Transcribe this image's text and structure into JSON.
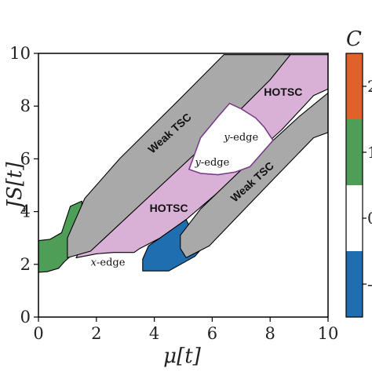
{
  "chart_data": {
    "type": "phase-diagram",
    "xlabel": "μ[t]",
    "ylabel": "JS[t]",
    "xlim": [
      0,
      10
    ],
    "ylim": [
      0,
      10
    ],
    "xticks": [
      "0",
      "2",
      "4",
      "6",
      "8",
      "10"
    ],
    "yticks": [
      "0",
      "2",
      "4",
      "6",
      "8",
      "10"
    ],
    "grid": false,
    "regions": [
      {
        "id": "orange",
        "name": "",
        "color": "#e0622a",
        "polygon": [
          [
            0,
            1.85
          ],
          [
            0.25,
            1.95
          ],
          [
            0.55,
            2.25
          ],
          [
            0.55,
            2.5
          ],
          [
            0.3,
            2.8
          ],
          [
            0,
            2.85
          ]
        ]
      },
      {
        "id": "green",
        "name": "",
        "color": "#4f9e58",
        "polygon": [
          [
            0,
            1.7
          ],
          [
            0.3,
            1.72
          ],
          [
            0.7,
            1.85
          ],
          [
            0.9,
            2.1
          ],
          [
            1.2,
            2.4
          ],
          [
            1.5,
            2.9
          ],
          [
            1.5,
            4.4
          ],
          [
            1.1,
            4.2
          ],
          [
            0.8,
            3.2
          ],
          [
            0.4,
            2.95
          ],
          [
            0,
            2.9
          ]
        ]
      },
      {
        "id": "pink",
        "name": "",
        "color": "#d9b0d6",
        "polygon": [
          [
            1.3,
            2.25
          ],
          [
            2.0,
            2.4
          ],
          [
            2.6,
            2.45
          ],
          [
            3.3,
            2.45
          ],
          [
            3.5,
            2.6
          ],
          [
            4.2,
            3.0
          ],
          [
            5.1,
            3.7
          ],
          [
            6.6,
            5.1
          ],
          [
            7.7,
            6.4
          ],
          [
            8.4,
            7.1
          ],
          [
            9.5,
            8.4
          ],
          [
            10,
            8.65
          ],
          [
            10,
            9.95
          ],
          [
            8.5,
            9.95
          ],
          [
            7.1,
            8.2
          ],
          [
            5.3,
            6.1
          ],
          [
            4.0,
            4.8
          ],
          [
            2.6,
            3.7
          ],
          [
            1.7,
            3.1
          ]
        ]
      },
      {
        "id": "blue",
        "name": "",
        "color": "#1f6fb0",
        "polygon": [
          [
            3.6,
            1.75
          ],
          [
            4.5,
            1.75
          ],
          [
            5.4,
            2.3
          ],
          [
            5.6,
            2.55
          ],
          [
            5.1,
            3.7
          ],
          [
            4.2,
            3.0
          ],
          [
            3.8,
            2.7
          ],
          [
            3.6,
            2.2
          ]
        ]
      },
      {
        "id": "weak-upper",
        "name": "Weak TSC",
        "color": "#a9a9a9",
        "polygon": [
          [
            1.0,
            2.25
          ],
          [
            1.8,
            2.5
          ],
          [
            6.0,
            6.8
          ],
          [
            8.0,
            9.0
          ],
          [
            8.7,
            9.95
          ],
          [
            6.4,
            9.95
          ],
          [
            5.0,
            8.4
          ],
          [
            2.8,
            6.0
          ],
          [
            1.6,
            4.5
          ],
          [
            1.0,
            3.0
          ]
        ]
      },
      {
        "id": "weak-lower",
        "name": "Weak TSC",
        "color": "#a9a9a9",
        "polygon": [
          [
            5.1,
            2.25
          ],
          [
            5.9,
            2.7
          ],
          [
            8.0,
            5.1
          ],
          [
            9.5,
            6.8
          ],
          [
            10,
            7.0
          ],
          [
            10,
            8.5
          ],
          [
            9.0,
            7.6
          ],
          [
            7.3,
            5.9
          ],
          [
            5.6,
            4.1
          ],
          [
            4.9,
            3.1
          ],
          [
            4.9,
            2.6
          ]
        ]
      },
      {
        "id": "white-pocket",
        "name": "",
        "color": "#ffffff",
        "polygon": [
          [
            5.2,
            5.6
          ],
          [
            5.6,
            5.45
          ],
          [
            6.2,
            5.4
          ],
          [
            6.8,
            5.5
          ],
          [
            7.3,
            5.7
          ],
          [
            8.1,
            6.7
          ],
          [
            7.8,
            7.2
          ],
          [
            7.5,
            7.55
          ],
          [
            7.0,
            7.9
          ],
          [
            6.6,
            8.1
          ],
          [
            6.2,
            7.6
          ],
          [
            5.6,
            6.8
          ]
        ]
      }
    ],
    "annotations": [
      {
        "text": "Weak TSC",
        "x": 4.55,
        "y": 6.95,
        "angle": -42
      },
      {
        "text": "Weak TSC",
        "x": 7.4,
        "y": 5.1,
        "angle": -42
      },
      {
        "text": "HOTSC",
        "x": 4.5,
        "y": 4.1,
        "angle": 0
      },
      {
        "text": "HOTSC",
        "x": 8.45,
        "y": 8.5,
        "angle": 0
      },
      {
        "text_italic": "y",
        "text": "-edge",
        "x": 7.0,
        "y": 6.7
      },
      {
        "text_italic": "y",
        "text": "-edge",
        "x": 6.0,
        "y": 5.75
      },
      {
        "text_italic": "x",
        "text": "-edge",
        "x": 2.4,
        "y": 1.95
      }
    ],
    "colorbar": {
      "title": "C",
      "colors": [
        "#1f6fb0",
        "#ffffff",
        "#4f9e58",
        "#e0622a"
      ],
      "visible_labels": [
        "-",
        "0",
        "1",
        "2"
      ]
    }
  }
}
